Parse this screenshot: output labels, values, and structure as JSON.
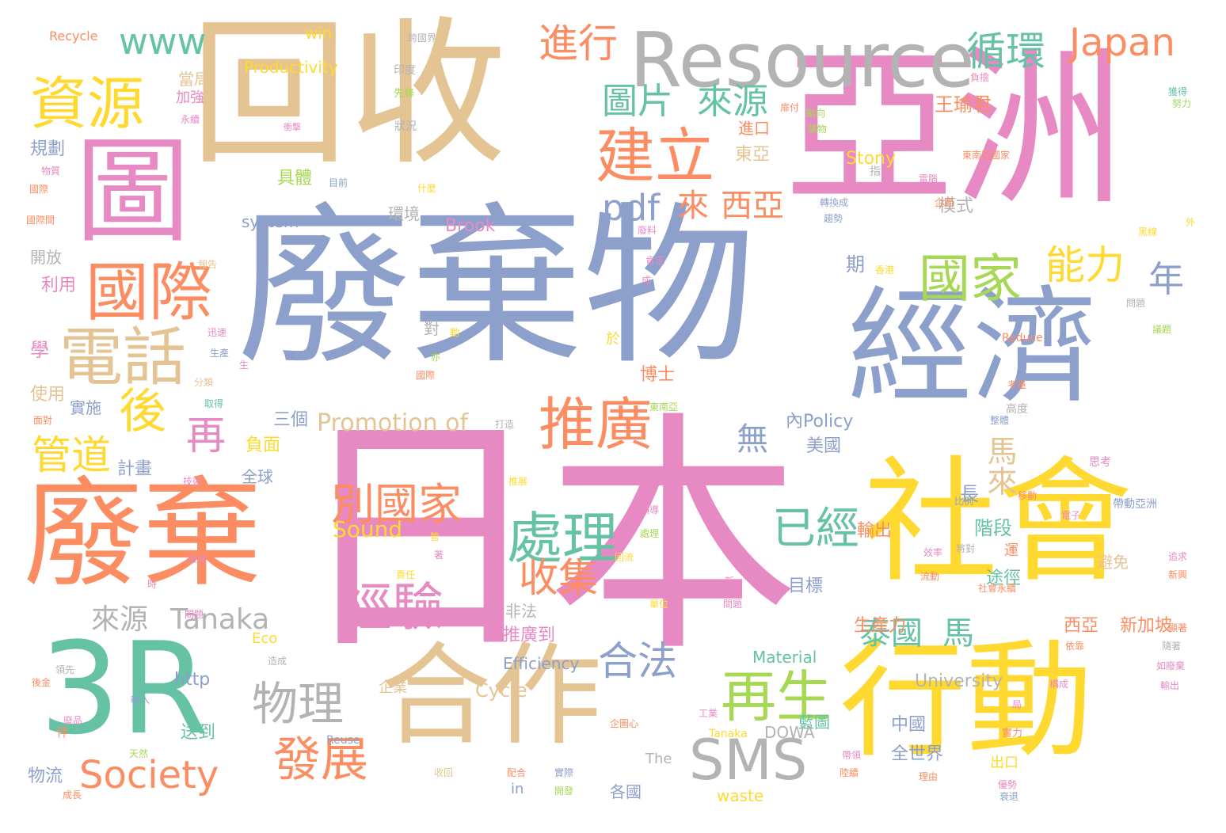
{
  "palette": {
    "blue": "#8da0cb",
    "pink": "#e78ac3",
    "orange": "#fc8d62",
    "green": "#66c2a5",
    "lime": "#a6d854",
    "yellow": "#ffd92f",
    "tan": "#e5c494",
    "gray": "#b3b3b3"
  },
  "words": [
    {
      "text": "廢棄物",
      "color": "blue"
    },
    {
      "text": "日本",
      "color": "pink"
    },
    {
      "text": "回收",
      "color": "tan"
    },
    {
      "text": "亞洲",
      "color": "pink"
    },
    {
      "text": "經濟",
      "color": "blue"
    },
    {
      "text": "廢棄",
      "color": "orange"
    },
    {
      "text": "社會",
      "color": "yellow"
    },
    {
      "text": "行動",
      "color": "yellow"
    },
    {
      "text": "合作",
      "color": "tan"
    },
    {
      "text": "3R",
      "color": "green"
    },
    {
      "text": "圖",
      "color": "pink"
    },
    {
      "text": "Resource",
      "color": "gray"
    },
    {
      "text": "資源",
      "color": "yellow"
    },
    {
      "text": "國際",
      "color": "orange"
    },
    {
      "text": "電話",
      "color": "tan"
    },
    {
      "text": "建立",
      "color": "orange"
    },
    {
      "text": "推廣",
      "color": "orange"
    },
    {
      "text": "處理",
      "color": "green"
    },
    {
      "text": "國家",
      "color": "lime"
    },
    {
      "text": "SMS",
      "color": "gray"
    },
    {
      "text": "再生",
      "color": "lime"
    },
    {
      "text": "經驗",
      "color": "pink"
    },
    {
      "text": "別國家",
      "color": "orange"
    },
    {
      "text": "發展",
      "color": "orange"
    },
    {
      "text": "物理",
      "color": "gray"
    },
    {
      "text": "Society",
      "color": "orange"
    },
    {
      "text": "Japan",
      "color": "orange"
    },
    {
      "text": "pdf",
      "color": "blue"
    },
    {
      "text": "www",
      "color": "green"
    },
    {
      "text": "進行",
      "color": "orange"
    },
    {
      "text": "循環",
      "color": "green"
    },
    {
      "text": "圖片",
      "color": "green"
    },
    {
      "text": "來源",
      "color": "green"
    },
    {
      "text": "後",
      "color": "yellow"
    },
    {
      "text": "再",
      "color": "pink"
    },
    {
      "text": "管道",
      "color": "yellow"
    },
    {
      "text": "能力",
      "color": "yellow"
    },
    {
      "text": "年",
      "color": "blue"
    },
    {
      "text": "已經",
      "color": "green"
    },
    {
      "text": "收集",
      "color": "orange"
    },
    {
      "text": "合法",
      "color": "blue"
    },
    {
      "text": "無",
      "color": "blue"
    },
    {
      "text": "馬來",
      "color": "tan"
    },
    {
      "text": "來源",
      "color": "gray"
    },
    {
      "text": "Tanaka",
      "color": "gray"
    },
    {
      "text": "泰國",
      "color": "green"
    },
    {
      "text": "馬",
      "color": "green"
    },
    {
      "text": "Promotion of",
      "color": "tan"
    },
    {
      "text": "Sound",
      "color": "yellow"
    },
    {
      "text": "來",
      "color": "orange"
    },
    {
      "text": "西亞",
      "color": "orange"
    },
    {
      "text": "Productivity",
      "color": "yellow"
    },
    {
      "text": "Stony",
      "color": "yellow"
    },
    {
      "text": "Brook",
      "color": "pink"
    },
    {
      "text": "system",
      "color": "blue"
    },
    {
      "text": "王瑜君",
      "color": "orange"
    },
    {
      "text": "東亞",
      "color": "tan"
    },
    {
      "text": "進口",
      "color": "orange"
    },
    {
      "text": "具體",
      "color": "lime"
    },
    {
      "text": "模式",
      "color": "gray"
    },
    {
      "text": "環境",
      "color": "gray"
    },
    {
      "text": "規劃",
      "color": "blue"
    },
    {
      "text": "加強",
      "color": "pink"
    },
    {
      "text": "當局",
      "color": "tan"
    },
    {
      "text": "win",
      "color": "yellow"
    },
    {
      "text": "Recycle",
      "color": "orange"
    },
    {
      "text": "開放",
      "color": "gray"
    },
    {
      "text": "利用",
      "color": "pink"
    },
    {
      "text": "學",
      "color": "pink"
    },
    {
      "text": "使用",
      "color": "tan"
    },
    {
      "text": "實施",
      "color": "blue"
    },
    {
      "text": "計畫",
      "color": "blue"
    },
    {
      "text": "三個",
      "color": "blue"
    },
    {
      "text": "負面",
      "color": "yellow"
    },
    {
      "text": "全球",
      "color": "blue"
    },
    {
      "text": "對",
      "color": "gray"
    },
    {
      "text": "博士",
      "color": "orange"
    },
    {
      "text": "美國",
      "color": "blue"
    },
    {
      "text": "輸出",
      "color": "orange"
    },
    {
      "text": "內Policy",
      "color": "blue"
    },
    {
      "text": "期",
      "color": "blue"
    },
    {
      "text": "階段",
      "color": "green"
    },
    {
      "text": "長",
      "color": "blue"
    },
    {
      "text": "目標",
      "color": "blue"
    },
    {
      "text": "途徑",
      "color": "green"
    },
    {
      "text": "避免",
      "color": "tan"
    },
    {
      "text": "非法",
      "color": "gray"
    },
    {
      "text": "推廣到",
      "color": "pink"
    },
    {
      "text": "生產力",
      "color": "orange"
    },
    {
      "text": "西亞",
      "color": "orange"
    },
    {
      "text": "新加坡",
      "color": "orange"
    },
    {
      "text": "Efficiency",
      "color": "blue"
    },
    {
      "text": "Material",
      "color": "green"
    },
    {
      "text": "University",
      "color": "gray"
    },
    {
      "text": "http",
      "color": "blue"
    },
    {
      "text": "Eco",
      "color": "yellow"
    },
    {
      "text": "Cycle",
      "color": "tan"
    },
    {
      "text": "企業",
      "color": "tan"
    },
    {
      "text": "藍圖",
      "color": "green"
    },
    {
      "text": "中國",
      "color": "blue"
    },
    {
      "text": "全世界",
      "color": "blue"
    },
    {
      "text": "出口",
      "color": "yellow"
    },
    {
      "text": "DOWA",
      "color": "gray"
    },
    {
      "text": "送到",
      "color": "green"
    },
    {
      "text": "物流",
      "color": "blue"
    },
    {
      "text": "Reuse",
      "color": "blue"
    },
    {
      "text": "The",
      "color": "gray"
    },
    {
      "text": "in",
      "color": "blue"
    },
    {
      "text": "waste",
      "color": "yellow"
    },
    {
      "text": "各國",
      "color": "blue"
    },
    {
      "text": "Reduce",
      "color": "orange"
    },
    {
      "text": "Tanaka",
      "color": "yellow"
    },
    {
      "text": "衝擊",
      "color": "pink"
    },
    {
      "text": "印度",
      "color": "gray"
    },
    {
      "text": "先鋒",
      "color": "lime"
    },
    {
      "text": "狀況",
      "color": "gray"
    },
    {
      "text": "跨國界",
      "color": "gray"
    },
    {
      "text": "指",
      "color": "gray"
    },
    {
      "text": "什麼",
      "color": "yellow"
    },
    {
      "text": "目前",
      "color": "blue"
    },
    {
      "text": "國際間",
      "color": "orange"
    },
    {
      "text": "物質",
      "color": "pink"
    },
    {
      "text": "國際",
      "color": "orange"
    },
    {
      "text": "永續",
      "color": "pink"
    },
    {
      "text": "趨勢",
      "color": "blue"
    },
    {
      "text": "轉換成",
      "color": "blue"
    },
    {
      "text": "企圖",
      "color": "orange"
    },
    {
      "text": "東南亞國家",
      "color": "orange"
    },
    {
      "text": "負擔",
      "color": "pink"
    },
    {
      "text": "獲得",
      "color": "green"
    },
    {
      "text": "努力",
      "color": "lime"
    },
    {
      "text": "廢料",
      "color": "pink"
    },
    {
      "text": "黑線",
      "color": "yellow"
    },
    {
      "text": "外",
      "color": "yellow"
    },
    {
      "text": "香港",
      "color": "yellow"
    },
    {
      "text": "肯定",
      "color": "pink"
    },
    {
      "text": "成",
      "color": "pink"
    },
    {
      "text": "問題",
      "color": "gray"
    },
    {
      "text": "高度",
      "color": "gray"
    },
    {
      "text": "整體",
      "color": "blue"
    },
    {
      "text": "考量",
      "color": "orange"
    },
    {
      "text": "帶動亞洲",
      "color": "blue"
    },
    {
      "text": "移動",
      "color": "orange"
    },
    {
      "text": "比例",
      "color": "blue"
    },
    {
      "text": "思考",
      "color": "pink"
    },
    {
      "text": "運",
      "color": "orange"
    },
    {
      "text": "將對",
      "color": "gray"
    },
    {
      "text": "社會永續",
      "color": "orange"
    },
    {
      "text": "新興",
      "color": "orange"
    },
    {
      "text": "追求",
      "color": "pink"
    },
    {
      "text": "如廢棄",
      "color": "pink"
    },
    {
      "text": "隨著",
      "color": "gray"
    },
    {
      "text": "實力",
      "color": "orange"
    },
    {
      "text": "優勢",
      "color": "pink"
    },
    {
      "text": "衰退",
      "color": "blue"
    },
    {
      "text": "理由",
      "color": "orange"
    },
    {
      "text": "動向",
      "color": "lime"
    },
    {
      "text": "技術",
      "color": "pink"
    },
    {
      "text": "推展",
      "color": "yellow"
    },
    {
      "text": "管",
      "color": "yellow"
    },
    {
      "text": "責任",
      "color": "yellow"
    },
    {
      "text": "單位",
      "color": "yellow"
    },
    {
      "text": "新",
      "color": "pink"
    },
    {
      "text": "間題",
      "color": "pink"
    },
    {
      "text": "流動",
      "color": "orange"
    },
    {
      "text": "效率",
      "color": "pink"
    },
    {
      "text": "工業",
      "color": "pink"
    },
    {
      "text": "回流",
      "color": "yellow"
    },
    {
      "text": "打造",
      "color": "gray"
    },
    {
      "text": "東南亞",
      "color": "lime"
    },
    {
      "text": "國際",
      "color": "orange"
    },
    {
      "text": "生產",
      "color": "blue"
    },
    {
      "text": "迅速",
      "color": "pink"
    },
    {
      "text": "領先",
      "color": "gray"
    },
    {
      "text": "於",
      "color": "yellow"
    },
    {
      "text": "亦",
      "color": "lime"
    },
    {
      "text": "動",
      "color": "yellow"
    },
    {
      "text": "陸續",
      "color": "orange"
    },
    {
      "text": "帶領",
      "color": "pink"
    },
    {
      "text": "收回",
      "color": "tan"
    },
    {
      "text": "實際",
      "color": "blue"
    },
    {
      "text": "配合",
      "color": "orange"
    },
    {
      "text": "開發",
      "color": "lime"
    },
    {
      "text": "輸入",
      "color": "blue"
    },
    {
      "text": "天然",
      "color": "lime"
    },
    {
      "text": "廢品",
      "color": "pink"
    },
    {
      "text": "成長",
      "color": "orange"
    },
    {
      "text": "伴",
      "color": "orange"
    },
    {
      "text": "企圖心",
      "color": "orange"
    },
    {
      "text": "顯著",
      "color": "orange"
    },
    {
      "text": "輸出",
      "color": "pink"
    },
    {
      "text": "構成",
      "color": "pink"
    },
    {
      "text": "時",
      "color": "pink"
    },
    {
      "text": "著",
      "color": "pink"
    },
    {
      "text": "依靠",
      "color": "orange"
    },
    {
      "text": "造成",
      "color": "gray"
    },
    {
      "text": "後金",
      "color": "orange"
    },
    {
      "text": "局",
      "color": "pink"
    },
    {
      "text": "扉付",
      "color": "orange"
    },
    {
      "text": "購物",
      "color": "lime"
    },
    {
      "text": "領導",
      "color": "pink"
    },
    {
      "text": "處理",
      "color": "lime"
    },
    {
      "text": "生",
      "color": "pink"
    },
    {
      "text": "面對",
      "color": "orange"
    },
    {
      "text": "分類",
      "color": "tan"
    },
    {
      "text": "取得",
      "color": "green"
    },
    {
      "text": "廠商",
      "color": "pink"
    },
    {
      "text": "問題",
      "color": "pink"
    },
    {
      "text": "電腦",
      "color": "pink"
    },
    {
      "text": "報告",
      "color": "tan"
    },
    {
      "text": "電子",
      "color": "pink"
    },
    {
      "text": "議題",
      "color": "lime"
    }
  ]
}
